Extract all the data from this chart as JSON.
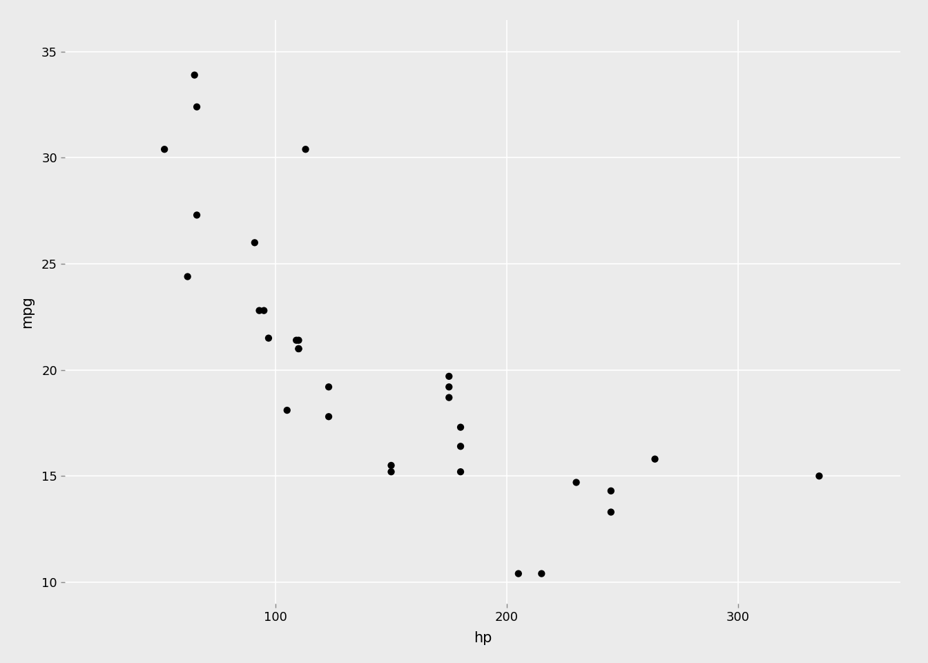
{
  "hp": [
    110,
    110,
    93,
    110,
    175,
    105,
    245,
    62,
    95,
    123,
    123,
    180,
    180,
    180,
    205,
    215,
    230,
    66,
    52,
    65,
    97,
    150,
    150,
    245,
    175,
    66,
    91,
    113,
    264,
    175,
    335,
    109
  ],
  "mpg": [
    21.0,
    21.0,
    22.8,
    21.4,
    18.7,
    18.1,
    14.3,
    24.4,
    22.8,
    19.2,
    17.8,
    16.4,
    17.3,
    15.2,
    10.4,
    10.4,
    14.7,
    32.4,
    30.4,
    33.9,
    21.5,
    15.5,
    15.2,
    13.3,
    19.2,
    27.3,
    26.0,
    30.4,
    15.8,
    19.7,
    15.0,
    21.4
  ],
  "xlabel": "hp",
  "ylabel": "mpg",
  "bg_color": "#EBEBEB",
  "dot_color": "#000000",
  "dot_size": 55,
  "grid_color": "#FFFFFF",
  "xlim": [
    9,
    370
  ],
  "ylim": [
    9.0,
    36.5
  ],
  "xticks": [
    100,
    200,
    300
  ],
  "yticks": [
    10,
    15,
    20,
    25,
    30,
    35
  ],
  "xlabel_fontsize": 15,
  "ylabel_fontsize": 15,
  "tick_fontsize": 13,
  "figure_bg": "#EBEBEB"
}
